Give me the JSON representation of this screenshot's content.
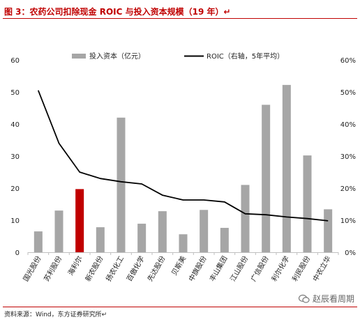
{
  "header": {
    "title": "图 3：农药公司扣除现金 ROIC 与投入资本规模（19 年）↵"
  },
  "footer": {
    "source": "资料来源：Wind，东方证券研究所↵",
    "watermark": "赵辰看周期"
  },
  "colors": {
    "bar": "#a6a6a6",
    "bar_highlight": "#c00000",
    "line": "#000000",
    "accent": "#c00000"
  },
  "chart_data": {
    "type": "bar+line",
    "categories": [
      "国光股份",
      "苏利股份",
      "海利尔",
      "新农股份",
      "扬农化工",
      "百傲化学",
      "先达股份",
      "贝斯美",
      "中旗股份",
      "丰山集团",
      "江山股份",
      "广信股份",
      "利尔化学",
      "利民股份",
      "中农立华"
    ],
    "series": [
      {
        "name": "投入资本（亿元）",
        "type": "bar",
        "axis": "left",
        "values": [
          6.5,
          13.0,
          19.7,
          7.8,
          42.0,
          8.9,
          12.8,
          5.6,
          13.2,
          7.6,
          21.0,
          46.0,
          52.2,
          30.2,
          13.4
        ],
        "highlight_index": 2
      },
      {
        "name": "ROIC（右轴，5年平均）",
        "type": "line",
        "axis": "right",
        "values": [
          50.5,
          34.0,
          25.0,
          23.0,
          22.0,
          21.3,
          17.8,
          16.3,
          16.3,
          15.7,
          12.0,
          11.7,
          11.0,
          10.5,
          9.8
        ]
      }
    ],
    "y_left": {
      "ylim": [
        0,
        60
      ],
      "ticks": [
        "0",
        "10",
        "20",
        "30",
        "40",
        "50",
        "60"
      ]
    },
    "y_right": {
      "ylim": [
        0,
        60
      ],
      "ticks": [
        "0%",
        "10%",
        "20%",
        "30%",
        "40%",
        "50%",
        "60%"
      ]
    },
    "legend": "top-center",
    "grid": false
  }
}
